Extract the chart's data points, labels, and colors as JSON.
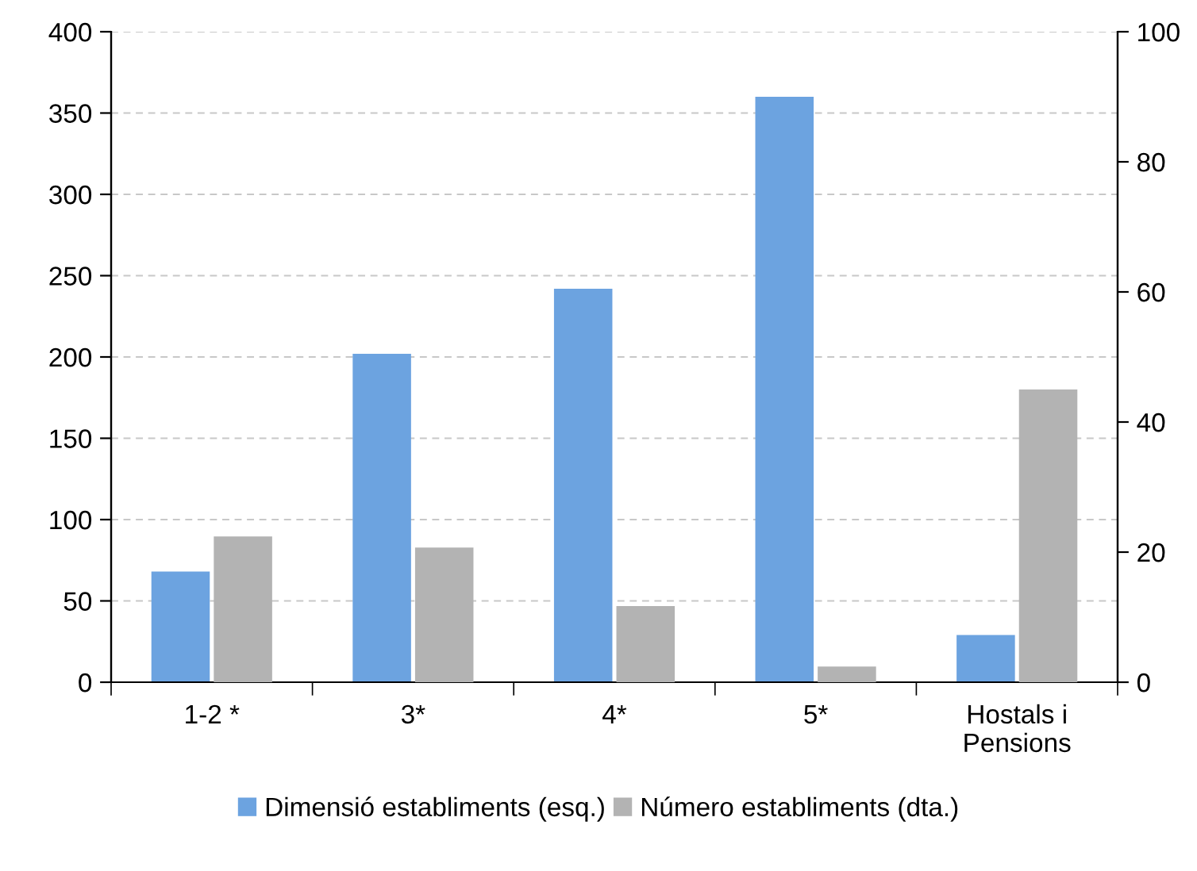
{
  "chart_data": {
    "type": "bar",
    "categories": [
      "1-2 *",
      "3*",
      "4*",
      "5*",
      "Hostals i\nPensions"
    ],
    "series": [
      {
        "name": "Dimensió establiments (esq.)",
        "color": "#6ca3e0",
        "values": [
          68,
          202,
          242,
          360,
          29
        ]
      },
      {
        "name": "Número establiments (dta.)",
        "color": "#b3b3b3",
        "values": [
          22.4,
          20.7,
          11.7,
          2.4,
          45
        ],
        "axis": "y2"
      }
    ],
    "ylim": [
      0,
      400
    ],
    "yticks": [
      0,
      50,
      100,
      150,
      200,
      250,
      300,
      350,
      400
    ],
    "y2lim": [
      0,
      100
    ],
    "y2ticks": [
      0,
      20,
      40,
      60,
      80,
      100
    ],
    "grid": "y",
    "legend": "bottom"
  }
}
